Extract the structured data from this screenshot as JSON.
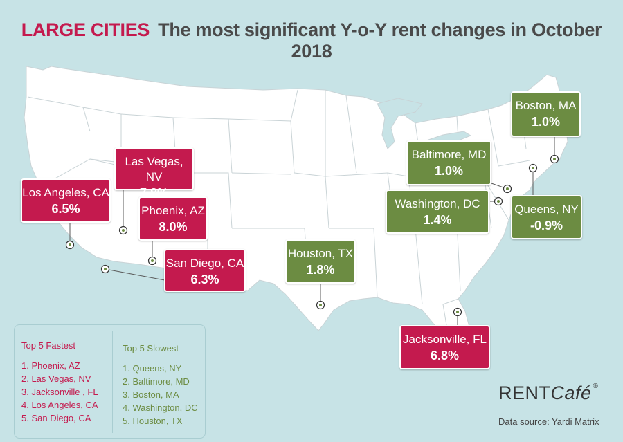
{
  "header": {
    "title_highlight": "LARGE CITIES",
    "title_main": "The most significant Y-o-Y rent changes in October 2018"
  },
  "colors": {
    "fastest": "#c41a4e",
    "slowest": "#6c8c42",
    "water": "#c7e3e6",
    "land": "#ffffff"
  },
  "cities": {
    "los_angeles": {
      "name": "Los Angeles, CA",
      "value": "6.5%",
      "group": "fastest"
    },
    "las_vegas": {
      "name": "Las Vegas, NV",
      "value": "7.8%",
      "group": "fastest"
    },
    "phoenix": {
      "name": "Phoenix, AZ",
      "value": "8.0%",
      "group": "fastest"
    },
    "san_diego": {
      "name": "San Diego, CA",
      "value": "6.3%",
      "group": "fastest"
    },
    "houston": {
      "name": "Houston, TX",
      "value": "1.8%",
      "group": "slowest"
    },
    "jacksonville": {
      "name": "Jacksonville, FL",
      "value": "6.8%",
      "group": "fastest"
    },
    "baltimore": {
      "name": "Baltimore, MD",
      "value": "1.0%",
      "group": "slowest"
    },
    "washington": {
      "name": "Washington, DC",
      "value": "1.4%",
      "group": "slowest"
    },
    "boston": {
      "name": "Boston, MA",
      "value": "1.0%",
      "group": "slowest"
    },
    "queens": {
      "name": "Queens, NY",
      "value": "-0.9%",
      "group": "slowest"
    }
  },
  "legend": {
    "fastest_title": "Top 5 Fastest",
    "fastest": [
      "1. Phoenix, AZ",
      "2. Las Vegas, NV",
      "3. Jacksonville , FL",
      "4. Los Angeles, CA",
      "5. San Diego, CA"
    ],
    "slowest_title": "Top 5 Slowest",
    "slowest": [
      "1. Queens, NY",
      "2. Baltimore, MD",
      "3. Boston, MA",
      "4. Washington, DC",
      "5. Houston, TX"
    ]
  },
  "brand": {
    "part1": "RENT",
    "part2": "Café",
    "mark": "®"
  },
  "source": "Data source:  Yardi Matrix"
}
